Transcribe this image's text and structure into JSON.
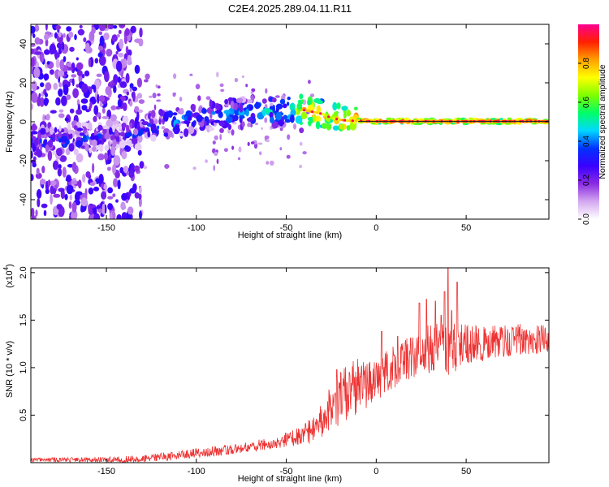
{
  "figure_title": "C2E4.2025.289.04.11.R11",
  "chart_data": [
    {
      "type": "heatmap",
      "title": "C2E4.2025.289.04.11.R11",
      "xlabel": "Height of straight line (km)",
      "ylabel": "Frequency (Hz)",
      "xlim": [
        -192,
        96
      ],
      "ylim": [
        -50,
        50
      ],
      "x_ticks": [
        -150,
        -100,
        -50,
        0,
        50
      ],
      "x_tick_labels": [
        "-150",
        "-100",
        "-50",
        "0",
        "50"
      ],
      "y_ticks": [
        -40,
        -20,
        0,
        20,
        40
      ],
      "y_tick_labels": [
        "-40",
        "-20",
        "0",
        "20",
        "40"
      ],
      "colorbar": {
        "label": "Normalized spectral amplitude",
        "range": [
          0,
          1
        ],
        "ticks": [
          0.0,
          0.2,
          0.4,
          0.6,
          0.8
        ],
        "tick_labels": [
          "0.0",
          "0.2",
          "0.4",
          "0.6",
          "0.8"
        ],
        "colors": [
          "#ffffff",
          "#d4a8f0",
          "#8a2be2",
          "#3a00ff",
          "#0033ff",
          "#00d8ff",
          "#00ff66",
          "#80ff00",
          "#ffff00",
          "#ffa000",
          "#ff2000",
          "#ff0090"
        ]
      },
      "ridge_x": [
        -192,
        -180,
        -170,
        -160,
        -150,
        -140,
        -135,
        -130,
        -120,
        -110,
        -100,
        -90,
        -80,
        -70,
        -60,
        -50,
        -45,
        -40,
        -35,
        -30,
        -25,
        -20,
        -15,
        -10,
        -5,
        0,
        20,
        40,
        60,
        80,
        96
      ],
      "ridge_y": [
        -8,
        -10,
        -9,
        -8,
        -7,
        -5,
        -8,
        -4,
        -2,
        0,
        1,
        3,
        4,
        5,
        6,
        5,
        6,
        6,
        5,
        4,
        2,
        1,
        0.5,
        0.5,
        0.3,
        0.2,
        0.2,
        0.2,
        0.2,
        0.2,
        0.2
      ],
      "ridge_amplitude": [
        0.3,
        0.35,
        0.3,
        0.3,
        0.25,
        0.2,
        0.3,
        0.3,
        0.35,
        0.4,
        0.35,
        0.35,
        0.4,
        0.4,
        0.45,
        0.45,
        0.6,
        0.75,
        0.8,
        0.7,
        0.7,
        0.75,
        0.8,
        0.8,
        0.85,
        0.85,
        0.85,
        0.85,
        0.85,
        0.85,
        0.85
      ]
    },
    {
      "type": "line",
      "title": "",
      "xlabel": "Height of straight line (km)",
      "ylabel": "SNR (10 * v/v)",
      "y_multiplier_label": "(x10",
      "y_multiplier_exponent": "4",
      "y_multiplier_close": ")",
      "xlim": [
        -192,
        96
      ],
      "ylim": [
        0,
        2.05
      ],
      "x_ticks": [
        -150,
        -100,
        -50,
        0,
        50
      ],
      "x_tick_labels": [
        "-150",
        "-100",
        "-50",
        "0",
        "50"
      ],
      "y_ticks": [
        0.5,
        1.0,
        1.5,
        2.0
      ],
      "y_tick_labels": [
        "0.5",
        "1.0",
        "1.5",
        "2.0"
      ],
      "series": [
        {
          "name": "SNR",
          "color": "#ee3333",
          "trend_x": [
            -192,
            -170,
            -150,
            -130,
            -120,
            -110,
            -100,
            -90,
            -80,
            -70,
            -60,
            -50,
            -45,
            -40,
            -35,
            -30,
            -25,
            -20,
            -15,
            -10,
            -5,
            0,
            5,
            10,
            15,
            20,
            25,
            30,
            35,
            40,
            50,
            60,
            70,
            80,
            90,
            96
          ],
          "trend_y": [
            0.03,
            0.03,
            0.03,
            0.04,
            0.06,
            0.08,
            0.1,
            0.12,
            0.14,
            0.17,
            0.2,
            0.24,
            0.27,
            0.3,
            0.35,
            0.4,
            0.55,
            0.7,
            0.75,
            0.8,
            0.8,
            0.85,
            0.95,
            1.0,
            1.05,
            1.1,
            1.15,
            1.2,
            1.2,
            1.2,
            1.25,
            1.25,
            1.28,
            1.3,
            1.3,
            1.3
          ],
          "noise_x": [
            -192,
            -150,
            -100,
            -60,
            -40,
            -25,
            -10,
            0,
            20,
            40,
            60,
            96
          ],
          "noise_amp": [
            0.02,
            0.03,
            0.05,
            0.06,
            0.1,
            0.28,
            0.3,
            0.22,
            0.25,
            0.28,
            0.18,
            0.15
          ],
          "peaks_x": [
            -22,
            -15,
            3,
            12,
            24,
            28,
            33,
            36,
            38,
            40,
            42,
            45
          ],
          "peaks_y": [
            0.98,
            0.95,
            1.38,
            1.33,
            1.68,
            1.72,
            1.7,
            1.55,
            1.8,
            2.05,
            1.6,
            1.9
          ]
        }
      ]
    }
  ]
}
